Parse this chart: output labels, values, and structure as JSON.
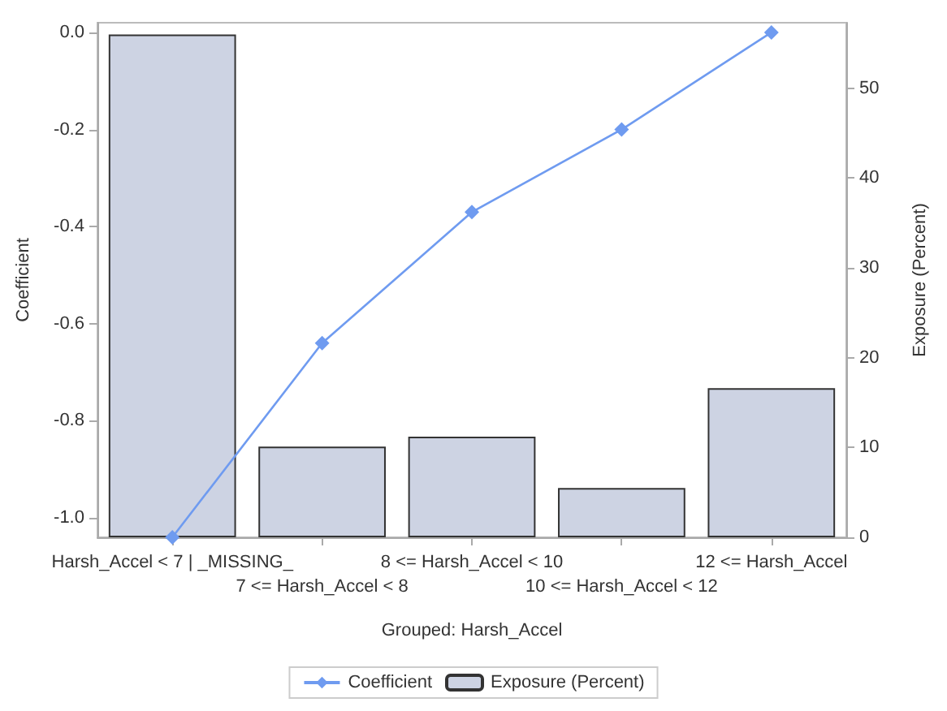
{
  "chart_data": {
    "type": "bar",
    "categories": [
      "Harsh_Accel < 7 | _MISSING_",
      "7 <= Harsh_Accel < 8",
      "8 <= Harsh_Accel < 10",
      "10 <= Harsh_Accel < 12",
      "12 <= Harsh_Accel"
    ],
    "series": [
      {
        "name": "Coefficient",
        "type": "line",
        "axis": "y",
        "color": "#6f9bf0",
        "marker": "diamond",
        "values": [
          -1.04,
          -0.64,
          -0.37,
          -0.2,
          0.0
        ]
      },
      {
        "name": "Exposure (Percent)",
        "type": "bar",
        "axis": "y2",
        "color": "#cdd3e3",
        "values": [
          56.0,
          10.1,
          11.2,
          5.5,
          16.6
        ]
      }
    ],
    "xlabel": "Grouped: Harsh_Accel",
    "ylabel": "Coefficient",
    "y2label": "Exposure (Percent)",
    "ylim": [
      -1.04,
      0.02
    ],
    "yticks": [
      {
        "value": -1.0,
        "label": "-1.0"
      },
      {
        "value": -0.8,
        "label": "-0.8"
      },
      {
        "value": -0.6,
        "label": "-0.6"
      },
      {
        "value": -0.4,
        "label": "-0.4"
      },
      {
        "value": -0.2,
        "label": "-0.2"
      },
      {
        "value": 0,
        "label": "0.0"
      }
    ],
    "y2lim": [
      0,
      57.3
    ],
    "y2ticks": [
      0,
      10,
      20,
      30,
      40,
      50
    ],
    "grid": false,
    "legend": "bottom"
  }
}
